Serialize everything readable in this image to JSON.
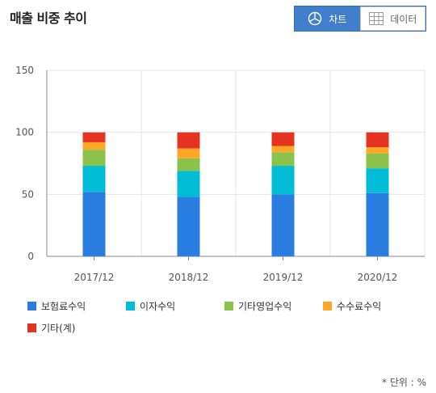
{
  "header": {
    "title": "매출 비중 추이",
    "chart_button": "차트",
    "table_button": "데이터"
  },
  "unit_note": "* 단위 : %",
  "chart_data": {
    "type": "bar",
    "stacked": true,
    "categories": [
      "2017/12",
      "2018/12",
      "2019/12",
      "2020/12"
    ],
    "ylim": [
      0,
      150
    ],
    "yticks": [
      0,
      50,
      100,
      150
    ],
    "grid": true,
    "legend_position": "bottom",
    "series": [
      {
        "name": "보험료수익",
        "color": "#2a7de1",
        "values": [
          52,
          48,
          50,
          51
        ]
      },
      {
        "name": "이자수익",
        "color": "#00bcd4",
        "values": [
          21,
          21,
          23,
          20
        ]
      },
      {
        "name": "기타영업수익",
        "color": "#8bc34a",
        "values": [
          13,
          10,
          11,
          12
        ]
      },
      {
        "name": "수수료수익",
        "color": "#ffa726",
        "values": [
          6,
          8,
          5,
          5
        ]
      },
      {
        "name": "기타(계)",
        "color": "#e53322",
        "values": [
          8,
          13,
          11,
          12
        ]
      }
    ]
  }
}
